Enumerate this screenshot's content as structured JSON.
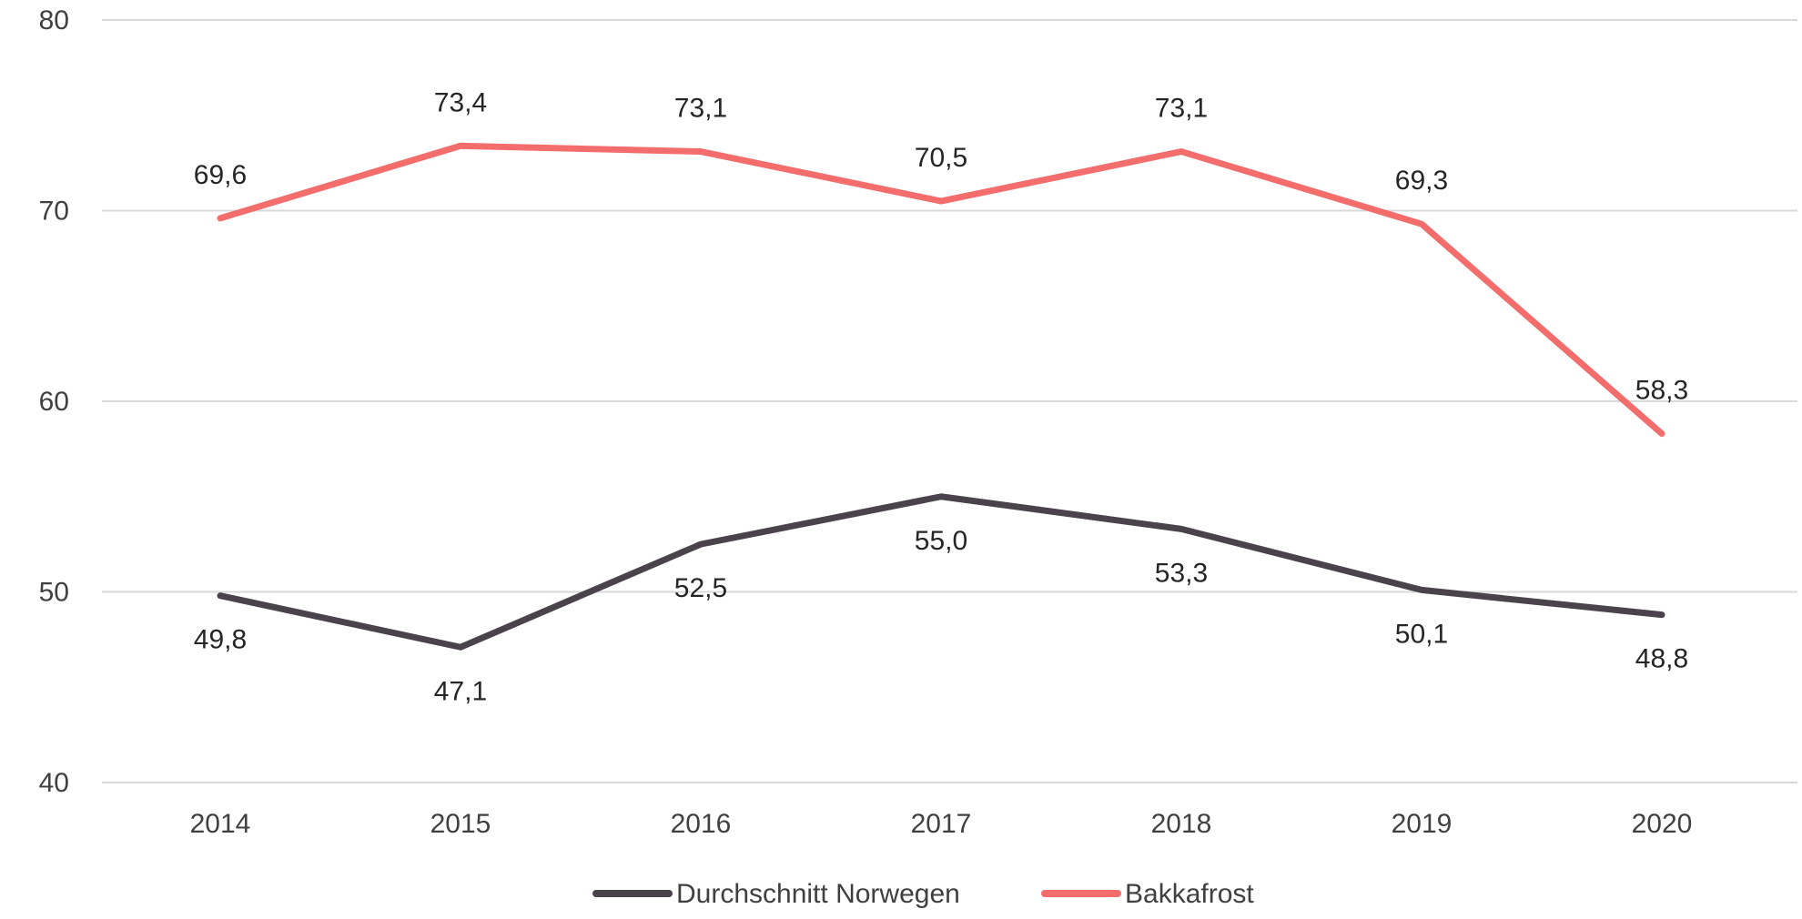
{
  "chart_data": {
    "type": "line",
    "categories": [
      "2014",
      "2015",
      "2016",
      "2017",
      "2018",
      "2019",
      "2020"
    ],
    "ylim": [
      40,
      80
    ],
    "yticks": [
      "40",
      "50",
      "60",
      "70",
      "80"
    ],
    "grid": true,
    "legend_position": "bottom-center",
    "series": [
      {
        "name": "Durchschnitt Norwegen",
        "color": "#4a434c",
        "values": [
          49.8,
          47.1,
          52.5,
          55.0,
          53.3,
          50.1,
          48.8
        ],
        "labels": [
          "49,8",
          "47,1",
          "52,5",
          "55,0",
          "53,3",
          "50,1",
          "48,8"
        ],
        "label_position": "below"
      },
      {
        "name": "Bakkafrost",
        "color": "#f46d6d",
        "values": [
          69.6,
          73.4,
          73.1,
          70.5,
          73.1,
          69.3,
          58.3
        ],
        "labels": [
          "69,6",
          "73,4",
          "73,1",
          "70,5",
          "73,1",
          "69,3",
          "58,3"
        ],
        "label_position": "above"
      }
    ]
  }
}
